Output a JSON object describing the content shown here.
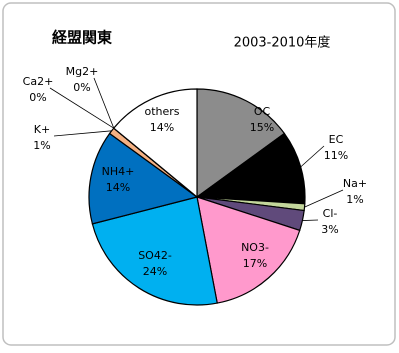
{
  "chart_data": {
    "type": "pie",
    "title": "経盟関東",
    "subtitle": "2003-2010年度",
    "categories": [
      "OC",
      "EC",
      "Na+",
      "Cl-",
      "NO3-",
      "SO42-",
      "NH4+",
      "K+",
      "Ca2+",
      "Mg2+",
      "others"
    ],
    "values": [
      15,
      11,
      1,
      3,
      17,
      24,
      14,
      1,
      0,
      0,
      14
    ],
    "value_labels": [
      "15%",
      "11%",
      "1%",
      "3%",
      "17%",
      "24%",
      "14%",
      "1%",
      "0%",
      "0%",
      "14%"
    ],
    "colors": [
      "#8c8c8c",
      "#000000",
      "#c3d69b",
      "#604a7b",
      "#ff99cc",
      "#00b0f0",
      "#0070c0",
      "#f4b183",
      "#e46c6c",
      "#f2f2f2",
      "#ffffff"
    ]
  }
}
